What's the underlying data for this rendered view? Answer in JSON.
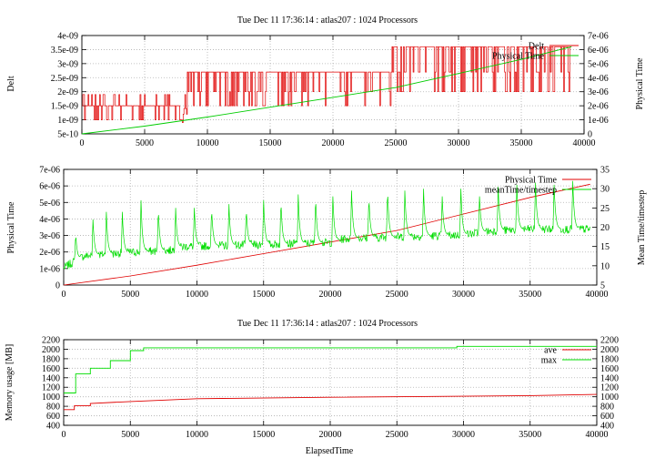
{
  "chart_data": [
    {
      "type": "line",
      "title": "Tue Dec 11 17:36:14 : atlas207 : 1024 Processors",
      "xlabel": "",
      "ylabel": "Delt",
      "y2label": "Physical Time",
      "xlim": [
        0,
        40000
      ],
      "ylim": [
        5e-10,
        4e-09
      ],
      "y2lim": [
        0,
        7e-06
      ],
      "xticks": [
        "0",
        "5000",
        "10000",
        "15000",
        "20000",
        "25000",
        "30000",
        "35000",
        "40000"
      ],
      "yticks": [
        "5e-10",
        "1e-09",
        "1.5e-09",
        "2e-09",
        "2.5e-09",
        "3e-09",
        "3.5e-09",
        "4e-09"
      ],
      "y2ticks": [
        "0",
        "1e-06",
        "2e-06",
        "3e-06",
        "4e-06",
        "5e-06",
        "6e-06",
        "7e-06"
      ],
      "grid": true,
      "legend_position": "top-right",
      "series": [
        {
          "name": "Delt",
          "axis": "y",
          "color": "#e00000",
          "segments": [
            {
              "x": [
                0,
                8000
              ],
              "levels": [
                1e-09,
                1.5e-09,
                1.9e-09
              ],
              "base": 1.5e-09
            },
            {
              "x": [
                8000,
                8400
              ],
              "levels": [
                9e-10,
                1.4e-09,
                1.9e-09
              ],
              "base": 1.2e-09
            },
            {
              "x": [
                8400,
                24700
              ],
              "levels": [
                1.5e-09,
                2e-09,
                2.7e-09
              ],
              "base": 2.7e-09
            },
            {
              "x": [
                24700,
                39000
              ],
              "levels": [
                2e-09,
                2.7e-09,
                3.6e-09
              ],
              "base": 3.6e-09
            }
          ]
        },
        {
          "name": "Physical Time",
          "axis": "y2",
          "color": "#00cc00",
          "x": [
            0,
            5000,
            10000,
            15000,
            20000,
            25000,
            30000,
            35000,
            39000
          ],
          "values": [
            0,
            5.5e-07,
            1.2e-06,
            1.9e-06,
            2.6e-06,
            3.3e-06,
            4.3e-06,
            5.3e-06,
            6.2e-06
          ]
        }
      ]
    },
    {
      "type": "line",
      "title": "",
      "xlabel": "",
      "ylabel": "Physical Time",
      "y2label": "Mean Time/timestep",
      "xlim": [
        0,
        40000
      ],
      "ylim": [
        0,
        7e-06
      ],
      "y2lim": [
        5,
        35
      ],
      "xticks": [
        "0",
        "5000",
        "10000",
        "15000",
        "20000",
        "25000",
        "30000",
        "35000",
        "40000"
      ],
      "yticks": [
        "0",
        "1e-06",
        "2e-06",
        "3e-06",
        "4e-06",
        "5e-06",
        "6e-06",
        "7e-06"
      ],
      "y2ticks": [
        "5",
        "10",
        "15",
        "20",
        "25",
        "30",
        "35"
      ],
      "grid": true,
      "legend_position": "top-right",
      "series": [
        {
          "name": "Physical Time",
          "axis": "y",
          "color": "#e00000",
          "x": [
            0,
            5000,
            10000,
            15000,
            20000,
            25000,
            30000,
            35000,
            39500
          ],
          "values": [
            0,
            5.5e-07,
            1.2e-06,
            1.9e-06,
            2.6e-06,
            3.3e-06,
            4.3e-06,
            5.3e-06,
            6.1e-06
          ]
        },
        {
          "name": "meanTime/timestep",
          "axis": "y2",
          "color": "#00dd00",
          "spikes_x": [
            900,
            2200,
            3200,
            4400,
            5800,
            7100,
            8400,
            9800,
            11100,
            12400,
            13700,
            15000,
            16300,
            17600,
            18900,
            20200,
            21600,
            22900,
            24300,
            25600,
            27000,
            28400,
            29800,
            31200,
            32600,
            34000,
            35400,
            36800,
            38200
          ],
          "spikes_y": [
            18.5,
            22,
            24,
            24,
            27,
            25,
            25,
            25,
            25,
            26,
            25,
            27,
            27,
            28.5,
            28,
            28,
            29.5,
            28,
            30,
            29.5,
            30,
            28,
            30,
            28,
            30.5,
            31,
            31.5,
            31,
            32
          ],
          "baseline_x": [
            0,
            1500,
            5000,
            8000,
            9000,
            15000,
            20000,
            21000,
            25000,
            30000,
            32000,
            35000,
            39500
          ],
          "baseline_y": [
            9.5,
            12.5,
            13.5,
            14,
            15,
            15.5,
            16,
            17,
            17.5,
            18,
            19,
            19.5,
            19.5
          ]
        }
      ]
    },
    {
      "type": "line",
      "title": "Tue Dec 11 17:36:14 : atlas207 : 1024 Processors",
      "xlabel": "ElapsedTime",
      "ylabel": "Memory usage [MB]",
      "y2label": "",
      "xlim": [
        0,
        40000
      ],
      "ylim": [
        400,
        2200
      ],
      "y2lim": [
        400,
        2200
      ],
      "xticks": [
        "0",
        "5000",
        "10000",
        "15000",
        "20000",
        "25000",
        "30000",
        "35000",
        "40000"
      ],
      "yticks": [
        "400",
        "600",
        "800",
        "1000",
        "1200",
        "1400",
        "1600",
        "1800",
        "2000",
        "2200"
      ],
      "y2ticks": [
        "400",
        "600",
        "800",
        "1000",
        "1200",
        "1400",
        "1600",
        "1800",
        "2000",
        "2200"
      ],
      "grid": true,
      "legend_position": "top-right",
      "series": [
        {
          "name": "ave",
          "color": "#e00000",
          "step": true,
          "x": [
            0,
            800,
            800,
            2000,
            2000,
            5000,
            10000,
            20000,
            30000,
            35000,
            40000
          ],
          "values": [
            730,
            730,
            810,
            810,
            860,
            900,
            960,
            990,
            1010,
            1025,
            1050
          ]
        },
        {
          "name": "max",
          "color": "#00dd00",
          "step": true,
          "x": [
            0,
            900,
            900,
            2000,
            2000,
            3500,
            3500,
            5000,
            5000,
            6000,
            6000,
            29500,
            29500,
            40000
          ],
          "values": [
            1080,
            1080,
            1480,
            1480,
            1600,
            1600,
            1760,
            1760,
            1970,
            1970,
            2030,
            2030,
            2060,
            2060
          ]
        }
      ]
    }
  ]
}
